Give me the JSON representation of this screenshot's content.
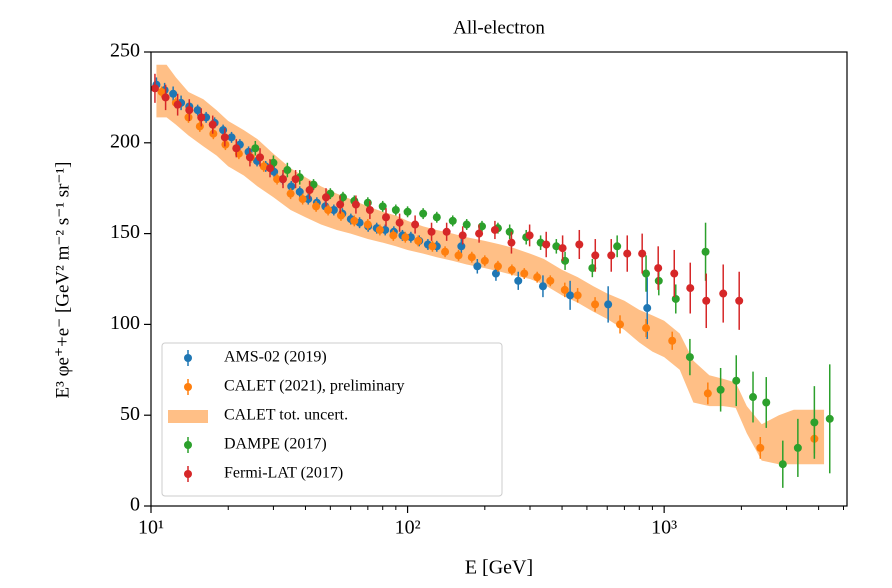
{
  "chart_data": {
    "type": "errorbar",
    "title": "All-electron",
    "xlabel": "E [GeV]",
    "ylabel": "E³ φe⁺+e⁻ [GeV² m⁻² s⁻¹ sr⁻¹]",
    "xscale": "log",
    "xlim": [
      10,
      5160
    ],
    "ylim": [
      0,
      250
    ],
    "xticks": [
      {
        "value": 10,
        "label": "10¹"
      },
      {
        "value": 100,
        "label": "10²"
      },
      {
        "value": 1000,
        "label": "10³"
      }
    ],
    "xminorticks": [
      20,
      30,
      40,
      50,
      60,
      70,
      80,
      90,
      200,
      300,
      400,
      500,
      600,
      700,
      800,
      900,
      2000,
      3000,
      4000,
      5000
    ],
    "yticks": [
      0,
      50,
      100,
      150,
      200,
      250
    ],
    "legend": "lower left",
    "series": [
      {
        "name": "AMS-02 (2019)",
        "color": "#1f77b4",
        "x": [
          10.5,
          11.3,
          12.2,
          13.1,
          14.1,
          15.2,
          16.4,
          17.7,
          19.1,
          20.6,
          22.2,
          24,
          25.9,
          28,
          30.2,
          32.6,
          35.2,
          38,
          41,
          44.3,
          47.8,
          51.6,
          55.7,
          60.1,
          65,
          70.2,
          75.8,
          81.8,
          88.4,
          95.5,
          103,
          111,
          120,
          130,
          162,
          187,
          221,
          270,
          337,
          430,
          605,
          859
        ],
        "values": [
          232,
          229,
          227,
          222,
          220,
          218,
          214,
          211,
          207,
          203,
          199,
          195,
          190,
          187,
          184,
          180,
          176,
          173,
          169,
          167,
          165,
          163,
          161,
          158,
          156,
          154,
          153,
          152,
          151,
          149,
          148,
          146,
          144,
          143,
          143,
          132,
          128,
          124,
          121,
          116,
          111,
          109
        ],
        "errors": [
          4,
          4,
          4,
          4,
          3,
          3,
          3,
          3,
          3,
          3,
          3,
          3,
          3,
          3,
          3,
          3,
          3,
          3,
          3,
          3,
          3,
          3,
          3,
          3,
          3,
          3,
          3,
          3,
          3,
          3,
          3,
          3,
          3,
          3,
          4,
          4,
          4,
          5,
          6,
          8,
          10,
          17
        ]
      },
      {
        "name": "CALET (2021), preliminary",
        "color": "#ff7f0e",
        "x": [
          11,
          12.5,
          14,
          15.5,
          17.5,
          19.5,
          22,
          24.5,
          27.5,
          31,
          35,
          39,
          44,
          49,
          55,
          62,
          70,
          78,
          88,
          98,
          110,
          125,
          140,
          158,
          178,
          200,
          225,
          255,
          285,
          320,
          360,
          410,
          460,
          538,
          673,
          850,
          1075,
          1480,
          2370,
          3850
        ],
        "values": [
          228,
          222,
          214,
          209,
          205,
          199,
          194,
          192,
          187,
          180,
          172,
          169,
          165,
          163,
          160,
          157,
          155,
          152,
          149,
          148,
          146,
          143,
          140,
          138,
          137,
          135,
          132,
          130,
          128,
          126,
          124,
          119,
          116,
          111,
          100,
          98,
          91,
          62,
          32,
          37
        ],
        "errors": [
          3,
          3,
          3,
          3,
          3,
          3,
          3,
          3,
          3,
          3,
          3,
          3,
          3,
          3,
          3,
          3,
          3,
          3,
          3,
          3,
          3,
          3,
          3,
          3,
          3,
          3,
          3,
          3,
          3,
          3,
          3,
          4,
          4,
          4,
          5,
          5,
          5,
          6,
          6,
          8
        ]
      },
      {
        "name": "DAMPE (2017)",
        "color": "#2ca02c",
        "x": [
          25.5,
          30,
          34,
          38,
          43,
          50,
          56,
          62,
          70,
          80,
          90,
          100,
          115,
          130,
          150,
          170,
          195,
          225,
          250,
          290,
          330,
          380,
          411,
          525,
          656,
          850,
          953,
          1110,
          1260,
          1450,
          1660,
          1910,
          2220,
          2500,
          2900,
          3320,
          3850,
          4420
        ],
        "values": [
          197,
          189,
          185,
          181,
          177,
          172,
          170,
          168,
          167,
          165,
          163,
          162,
          161,
          159,
          157,
          155,
          154,
          153,
          151,
          148,
          145,
          143,
          135,
          131,
          143,
          128,
          124,
          114,
          82,
          140,
          64,
          69,
          60,
          57,
          23,
          32,
          46,
          48
        ],
        "errors": [
          4,
          4,
          4,
          4,
          3,
          3,
          3,
          3,
          3,
          3,
          3,
          3,
          3,
          3,
          3,
          3,
          3,
          3,
          4,
          4,
          4,
          4,
          5,
          5,
          6,
          10,
          8,
          8,
          10,
          16,
          12,
          14,
          14,
          14,
          13,
          16,
          20,
          30
        ]
      },
      {
        "name": "Fermi-LAT (2017)",
        "color": "#d62728",
        "x": [
          10.36,
          11.4,
          12.7,
          14.1,
          15.7,
          17.4,
          19.4,
          21.5,
          24.3,
          26.6,
          29.1,
          32.7,
          36.6,
          41.5,
          48.1,
          54.6,
          62.9,
          71.3,
          82.4,
          93.1,
          107,
          124,
          142,
          164,
          190,
          219,
          254,
          299,
          347,
          402,
          467,
          539,
          622,
          718,
          821,
          948,
          1095,
          1264,
          1459,
          1699,
          1961
        ],
        "values": [
          230,
          225,
          221,
          218,
          214,
          210,
          203,
          197,
          192,
          192,
          186,
          180,
          180,
          174,
          170,
          166,
          166,
          163,
          159,
          156,
          155,
          151,
          151,
          149,
          150,
          152,
          145,
          149,
          144,
          142,
          144,
          138,
          138,
          139,
          139,
          131,
          128,
          120,
          113,
          117,
          113
        ],
        "errors": [
          8,
          7,
          6,
          6,
          5,
          5,
          5,
          5,
          5,
          5,
          5,
          5,
          5,
          5,
          5,
          5,
          5,
          5,
          5,
          5,
          5,
          5,
          5,
          5,
          5,
          5,
          6,
          6,
          7,
          7,
          8,
          9,
          9,
          10,
          11,
          12,
          13,
          14,
          15,
          16,
          16
        ]
      }
    ],
    "band": {
      "name": "CALET tot. uncert.",
      "color": "#ffbf86",
      "x": [
        10.5,
        11.5,
        12.5,
        14,
        16,
        18,
        20,
        23,
        26,
        30,
        35,
        40,
        46,
        53,
        60,
        70,
        80,
        90,
        100,
        115,
        130,
        150,
        170,
        200,
        230,
        260,
        300,
        340,
        400,
        460,
        530,
        600,
        700,
        800,
        900,
        1000,
        1150,
        1300,
        1500,
        1700,
        1900,
        2100,
        2400,
        2800,
        3200,
        3700,
        4200
      ],
      "lower": [
        214,
        214,
        210,
        204,
        198,
        193,
        187,
        182,
        176,
        170,
        163,
        159,
        155,
        152,
        150,
        147,
        145,
        143,
        141,
        139,
        137,
        135,
        133,
        131,
        129,
        127,
        125,
        122,
        116,
        112,
        107,
        103,
        97,
        90,
        85,
        82,
        75,
        57,
        55,
        55,
        54,
        40,
        25,
        23,
        23,
        23,
        23
      ],
      "upper": [
        243,
        243,
        236,
        228,
        224,
        218,
        212,
        207,
        202,
        194,
        186,
        181,
        176,
        172,
        169,
        165,
        162,
        160,
        157,
        154,
        152,
        150,
        148,
        146,
        144,
        142,
        139,
        136,
        130,
        126,
        121,
        117,
        113,
        108,
        105,
        102,
        95,
        80,
        72,
        70,
        68,
        55,
        45,
        50,
        53,
        53,
        53
      ]
    }
  }
}
